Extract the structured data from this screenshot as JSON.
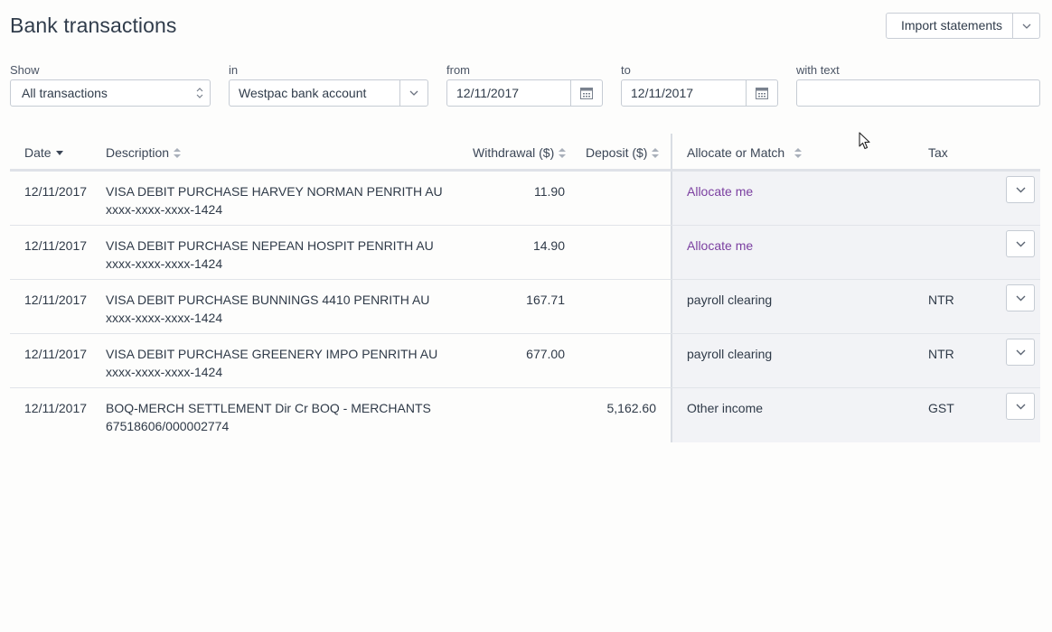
{
  "page": {
    "title": "Bank transactions"
  },
  "header": {
    "import_label": "Import statements"
  },
  "filters": {
    "show_label": "Show",
    "show_value": "All transactions",
    "in_label": "in",
    "in_value": "Westpac bank account",
    "from_label": "from",
    "from_value": "12/11/2017",
    "to_label": "to",
    "to_value": "12/11/2017",
    "text_label": "with text",
    "text_value": ""
  },
  "table": {
    "columns": {
      "date": "Date",
      "description": "Description",
      "withdrawal": "Withdrawal ($)",
      "deposit": "Deposit ($)",
      "allocate": "Allocate or Match",
      "tax": "Tax"
    },
    "rows": [
      {
        "date": "12/11/2017",
        "desc1": "VISA DEBIT PURCHASE HARVEY NORMAN PENRITH AU",
        "desc2": "xxxx-xxxx-xxxx-1424",
        "withdrawal": "11.90",
        "deposit": "",
        "allocate": "Allocate me",
        "allocate_is_link": true,
        "tax": ""
      },
      {
        "date": "12/11/2017",
        "desc1": "VISA DEBIT PURCHASE NEPEAN HOSPIT PENRITH AU",
        "desc2": "xxxx-xxxx-xxxx-1424",
        "withdrawal": "14.90",
        "deposit": "",
        "allocate": "Allocate me",
        "allocate_is_link": true,
        "tax": ""
      },
      {
        "date": "12/11/2017",
        "desc1": "VISA DEBIT PURCHASE BUNNINGS 4410 PENRITH AU",
        "desc2": "xxxx-xxxx-xxxx-1424",
        "withdrawal": "167.71",
        "deposit": "",
        "allocate": "payroll clearing",
        "allocate_is_link": false,
        "tax": "NTR"
      },
      {
        "date": "12/11/2017",
        "desc1": "VISA DEBIT PURCHASE GREENERY IMPO PENRITH AU",
        "desc2": "xxxx-xxxx-xxxx-1424",
        "withdrawal": "677.00",
        "deposit": "",
        "allocate": "payroll clearing",
        "allocate_is_link": false,
        "tax": "NTR"
      },
      {
        "date": "12/11/2017",
        "desc1": "BOQ-MERCH SETTLEMENT Dir Cr BOQ - MERCHANTS",
        "desc2": "67518606/000002774",
        "withdrawal": "",
        "deposit": "5,162.60",
        "allocate": "Other income",
        "allocate_is_link": false,
        "tax": "GST"
      }
    ]
  },
  "colors": {
    "link": "#7b3fa0",
    "panel": "#f2f3f6",
    "border": "#c6ccd4"
  }
}
